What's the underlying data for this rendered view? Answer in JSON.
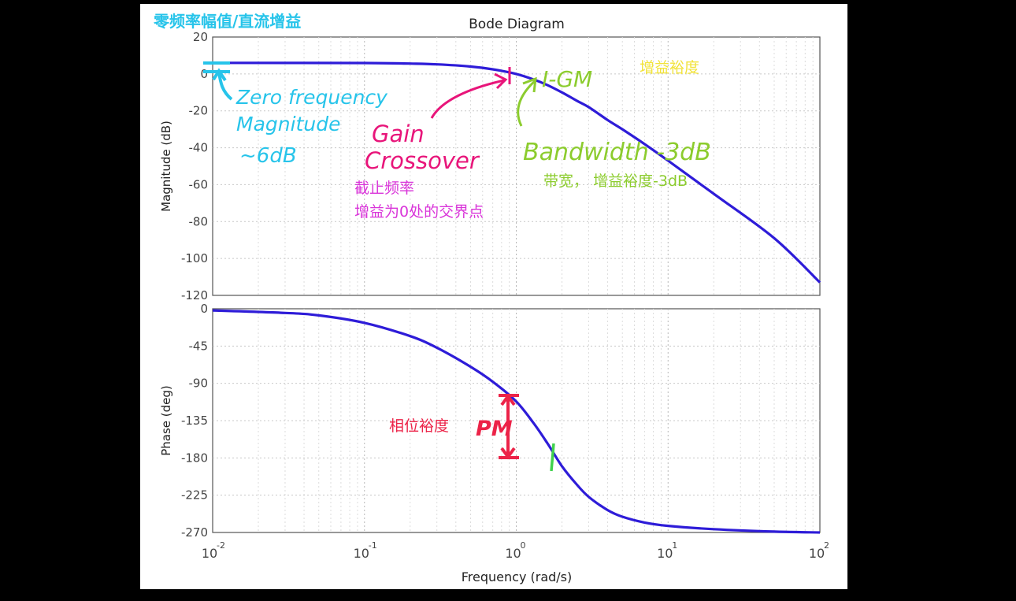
{
  "chart_data": [
    {
      "type": "line",
      "title": "Bode Diagram",
      "xlabel": "Frequency  (rad/s)",
      "ylabel": "Magnitude (dB)",
      "xscale": "log",
      "xlim": [
        0.01,
        100
      ],
      "ylim": [
        -120,
        20
      ],
      "yticks": [
        "20",
        "0",
        "-20",
        "-40",
        "-60",
        "-80",
        "-100",
        "-120"
      ],
      "grid": true,
      "series": [
        {
          "color": "#2e1cd8",
          "x": [
            0.01,
            0.1,
            0.2,
            0.3,
            0.5,
            0.7,
            1.0,
            1.3,
            1.6,
            2.0,
            2.5,
            3.0,
            4.0,
            5.0,
            7.0,
            10.0,
            20.0,
            50.0,
            100.0
          ],
          "y": [
            6,
            5.9,
            5.6,
            5.2,
            4.0,
            2.5,
            0.0,
            -3.0,
            -6.0,
            -10,
            -14.5,
            -18,
            -25,
            -30,
            -38,
            -47,
            -65,
            -89,
            -113
          ]
        }
      ]
    },
    {
      "type": "line",
      "xlabel": "Frequency  (rad/s)",
      "ylabel": "Phase (deg)",
      "xscale": "log",
      "xlim": [
        0.01,
        100
      ],
      "ylim": [
        -270,
        0
      ],
      "yticks": [
        "0",
        "-45",
        "-90",
        "-135",
        "-180",
        "-225",
        "-270"
      ],
      "xticks": [
        "10",
        "10",
        "10",
        "10",
        "10"
      ],
      "xtick_exponents": [
        "-2",
        "-1",
        "0",
        "1",
        "2"
      ],
      "grid": true,
      "series": [
        {
          "color": "#2e1cd8",
          "x": [
            0.01,
            0.03,
            0.05,
            0.1,
            0.2,
            0.3,
            0.5,
            0.7,
            1.0,
            1.3,
            1.6,
            2.0,
            2.5,
            3.0,
            4.0,
            5.0,
            7.0,
            10.0,
            20.0,
            50.0,
            100.0
          ],
          "y": [
            -2,
            -5,
            -8,
            -17,
            -33,
            -47,
            -70,
            -88,
            -112,
            -138,
            -162,
            -190,
            -212,
            -227,
            -243,
            -251,
            -258,
            -262,
            -266,
            -269,
            -270
          ]
        }
      ]
    }
  ],
  "annotations": {
    "zero_freq_cn": "零频率幅值/直流增益",
    "zero_freq_hand": [
      "Zero frequency",
      "Magnitude",
      "~6dB"
    ],
    "gain_crossover_hand": [
      "Gain",
      "Crossover"
    ],
    "gain_crossover_cn": [
      "截止频率",
      "增益为0处的交界点"
    ],
    "gm_hand": "I-GM",
    "gm_cn": "增益裕度",
    "bandwidth_hand": "Bandwidth -3dB",
    "bandwidth_cn": "带宽，  增益裕度-3dB",
    "pm_hand": "PM",
    "pm_cn": "相位裕度",
    "colors": {
      "cyan": "#27c4ea",
      "magenta": "#e8157a",
      "violet": "#d934d9",
      "yellow": "#f2e33a",
      "lime": "#8ccc2e",
      "red": "#ec2348",
      "green": "#41d24e"
    }
  }
}
